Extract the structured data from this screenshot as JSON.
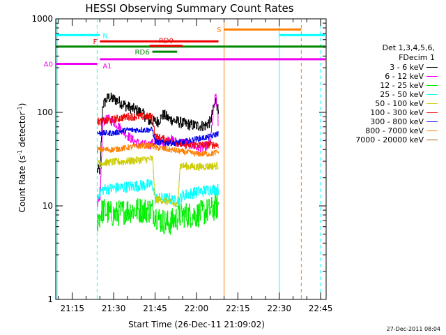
{
  "chart_data": {
    "type": "line",
    "title": "HESSI Observing Summary Count Rates",
    "xlabel": "Start Time (26-Dec-11 21:09:02)",
    "ylabel_pre": "Count Rate (s",
    "ylabel_sup1": "-1",
    "ylabel_mid": " detector",
    "ylabel_sup2": "-1",
    "ylabel_post": ")",
    "y_scale": "log",
    "ylim": [
      1,
      1000
    ],
    "xlim": [
      "21:09",
      "22:47"
    ],
    "x_ticks": [
      "21:15",
      "21:30",
      "21:45",
      "22:00",
      "22:15",
      "22:30",
      "22:45"
    ],
    "y_ticks": [
      "1",
      "10",
      "100",
      "1000"
    ],
    "grid": false,
    "legend": {
      "placement": "right",
      "header": [
        "Det 1,3,4,5,6,",
        "FDecim 1"
      ],
      "entries": [
        {
          "label": "3 - 6 keV",
          "color": "#000000"
        },
        {
          "label": "6 - 12 keV",
          "color": "#ee00ee"
        },
        {
          "label": "12 - 25 keV",
          "color": "#00ee00"
        },
        {
          "label": "25 - 50 keV",
          "color": "#00ffff"
        },
        {
          "label": "50 - 100 keV",
          "color": "#cccc00"
        },
        {
          "label": "100 - 300 keV",
          "color": "#ee0000"
        },
        {
          "label": "300 - 800 keV",
          "color": "#0000ee"
        },
        {
          "label": "800 - 7000 keV",
          "color": "#ff7f00"
        },
        {
          "label": "7000 - 20000 keV",
          "color": "#a06000"
        }
      ]
    },
    "series": [
      {
        "name": "3 - 6 keV",
        "color": "#000000",
        "noise": 0.06,
        "x": [
          "21:24",
          "21:25",
          "21:26",
          "21:28",
          "21:31",
          "21:35",
          "21:40",
          "21:43",
          "21:46",
          "21:48",
          "21:50",
          "21:53",
          "21:56",
          "22:00",
          "22:03",
          "22:05",
          "22:06",
          "22:07",
          "22:08"
        ],
        "y": [
          24,
          24,
          120,
          145,
          135,
          115,
          100,
          80,
          80,
          95,
          85,
          80,
          75,
          72,
          72,
          80,
          105,
          135,
          100
        ]
      },
      {
        "name": "6 - 12 keV",
        "color": "#ee00ee",
        "noise": 0.05,
        "x": [
          "21:24",
          "21:25",
          "21:26",
          "21:28",
          "21:31",
          "21:34",
          "21:37",
          "21:40",
          "21:43",
          "21:46",
          "21:48",
          "21:50",
          "21:53",
          "21:56",
          "22:00",
          "22:03",
          "22:05",
          "22:06",
          "22:07",
          "22:08"
        ],
        "y": [
          11,
          11,
          80,
          85,
          75,
          60,
          50,
          45,
          45,
          50,
          45,
          52,
          48,
          48,
          42,
          42,
          48,
          95,
          160,
          65
        ]
      },
      {
        "name": "12 - 25 keV",
        "color": "#00ee00",
        "noise": 0.14,
        "x": [
          "21:24",
          "21:26",
          "21:30",
          "21:35",
          "21:40",
          "21:44",
          "21:45",
          "21:47",
          "21:50",
          "21:53",
          "21:55",
          "22:00",
          "22:05",
          "22:08"
        ],
        "y": [
          7,
          9,
          8,
          9,
          9,
          9,
          8,
          7,
          6.5,
          7.5,
          8,
          8,
          9,
          10
        ]
      },
      {
        "name": "25 - 50 keV",
        "color": "#00ffff",
        "noise": 0.06,
        "x": [
          "21:24",
          "21:26",
          "21:35",
          "21:44",
          "21:45",
          "21:48",
          "21:50",
          "21:53",
          "21:55",
          "22:00",
          "22:05",
          "22:08"
        ],
        "y": [
          13,
          15,
          16,
          17,
          12,
          12,
          12,
          11,
          13,
          14,
          15,
          15
        ]
      },
      {
        "name": "50 - 100 keV",
        "color": "#cccc00",
        "noise": 0.04,
        "x": [
          "21:24",
          "21:26",
          "21:35",
          "21:44",
          "21:45",
          "21:50",
          "21:53",
          "21:54",
          "22:00",
          "22:08"
        ],
        "y": [
          28,
          29,
          30,
          32,
          12,
          11,
          10,
          27,
          26,
          27
        ]
      },
      {
        "name": "100 - 300 keV",
        "color": "#ee0000",
        "noise": 0.04,
        "x": [
          "21:24",
          "21:26",
          "21:35",
          "21:44",
          "21:45",
          "21:50",
          "21:55",
          "22:00",
          "22:08"
        ],
        "y": [
          80,
          80,
          90,
          90,
          55,
          50,
          45,
          45,
          45
        ]
      },
      {
        "name": "300 - 800 keV",
        "color": "#0000ee",
        "noise": 0.03,
        "x": [
          "21:24",
          "21:26",
          "21:30",
          "21:35",
          "21:40",
          "21:44",
          "21:45",
          "21:50",
          "21:55",
          "22:00",
          "22:05",
          "22:08"
        ],
        "y": [
          60,
          60,
          60,
          65,
          65,
          65,
          48,
          47,
          48,
          52,
          55,
          60
        ]
      },
      {
        "name": "800 - 7000 keV",
        "color": "#ff7f00",
        "noise": 0.03,
        "x": [
          "21:24",
          "21:26",
          "21:30",
          "21:35",
          "21:40",
          "21:44",
          "21:45",
          "21:50",
          "21:55",
          "22:00",
          "22:05",
          "22:08"
        ],
        "y": [
          40,
          40,
          40,
          42,
          44,
          44,
          42,
          40,
          38,
          36,
          36,
          38
        ]
      }
    ],
    "annotations": {
      "vlines": [
        {
          "x": "21:09:30",
          "color": "#00ffff",
          "style": "solid"
        },
        {
          "x": "21:24",
          "color": "#00ffff",
          "style": "dashed"
        },
        {
          "x": "22:10",
          "color": "#ff7f00",
          "style": "solid"
        },
        {
          "x": "22:30",
          "color": "#00ffff",
          "style": "solid"
        },
        {
          "x": "22:38",
          "color": "#ff7f00",
          "style": "dashed"
        },
        {
          "x": "22:45",
          "color": "#00ffff",
          "style": "dashed"
        }
      ],
      "bars": [
        {
          "label": "N",
          "color": "#00ffff",
          "label_side": "right",
          "segments": [
            [
              "21:09",
              "21:25"
            ],
            [
              "22:30",
              "22:47"
            ]
          ],
          "level": 670
        },
        {
          "label": "S",
          "color": "#ff7f00",
          "label_side": "left",
          "segments": [
            [
              "22:10",
              "22:38"
            ]
          ],
          "level": 770
        },
        {
          "label": "F",
          "color": "#ee0000",
          "label_side": "left",
          "segments": [
            [
              "21:25",
              "22:08"
            ]
          ],
          "level": 575
        },
        {
          "label": "",
          "color": "#008800",
          "label_side": "none",
          "segments": [
            [
              "21:09",
              "22:47"
            ]
          ],
          "level": 505
        },
        {
          "label": "RD0",
          "color": "#ee0000",
          "label_side": "above",
          "segments": [
            [
              "21:43",
              "21:55"
            ]
          ],
          "level": 515
        },
        {
          "label": "RD6",
          "color": "#008800",
          "label_side": "left",
          "segments": [
            [
              "21:44",
              "21:53"
            ]
          ],
          "level": 445
        },
        {
          "label": "A0",
          "color": "#ee00ee",
          "label_side": "left",
          "segments": [
            [
              "21:09",
              "21:24"
            ]
          ],
          "level": 330
        },
        {
          "label": "A1",
          "color": "#ee00ee",
          "label_side": "below",
          "segments": [
            [
              "21:25",
              "22:47"
            ]
          ],
          "level": 370
        }
      ]
    }
  },
  "footer": {
    "timestamp": "27-Dec-2011 08:04"
  }
}
